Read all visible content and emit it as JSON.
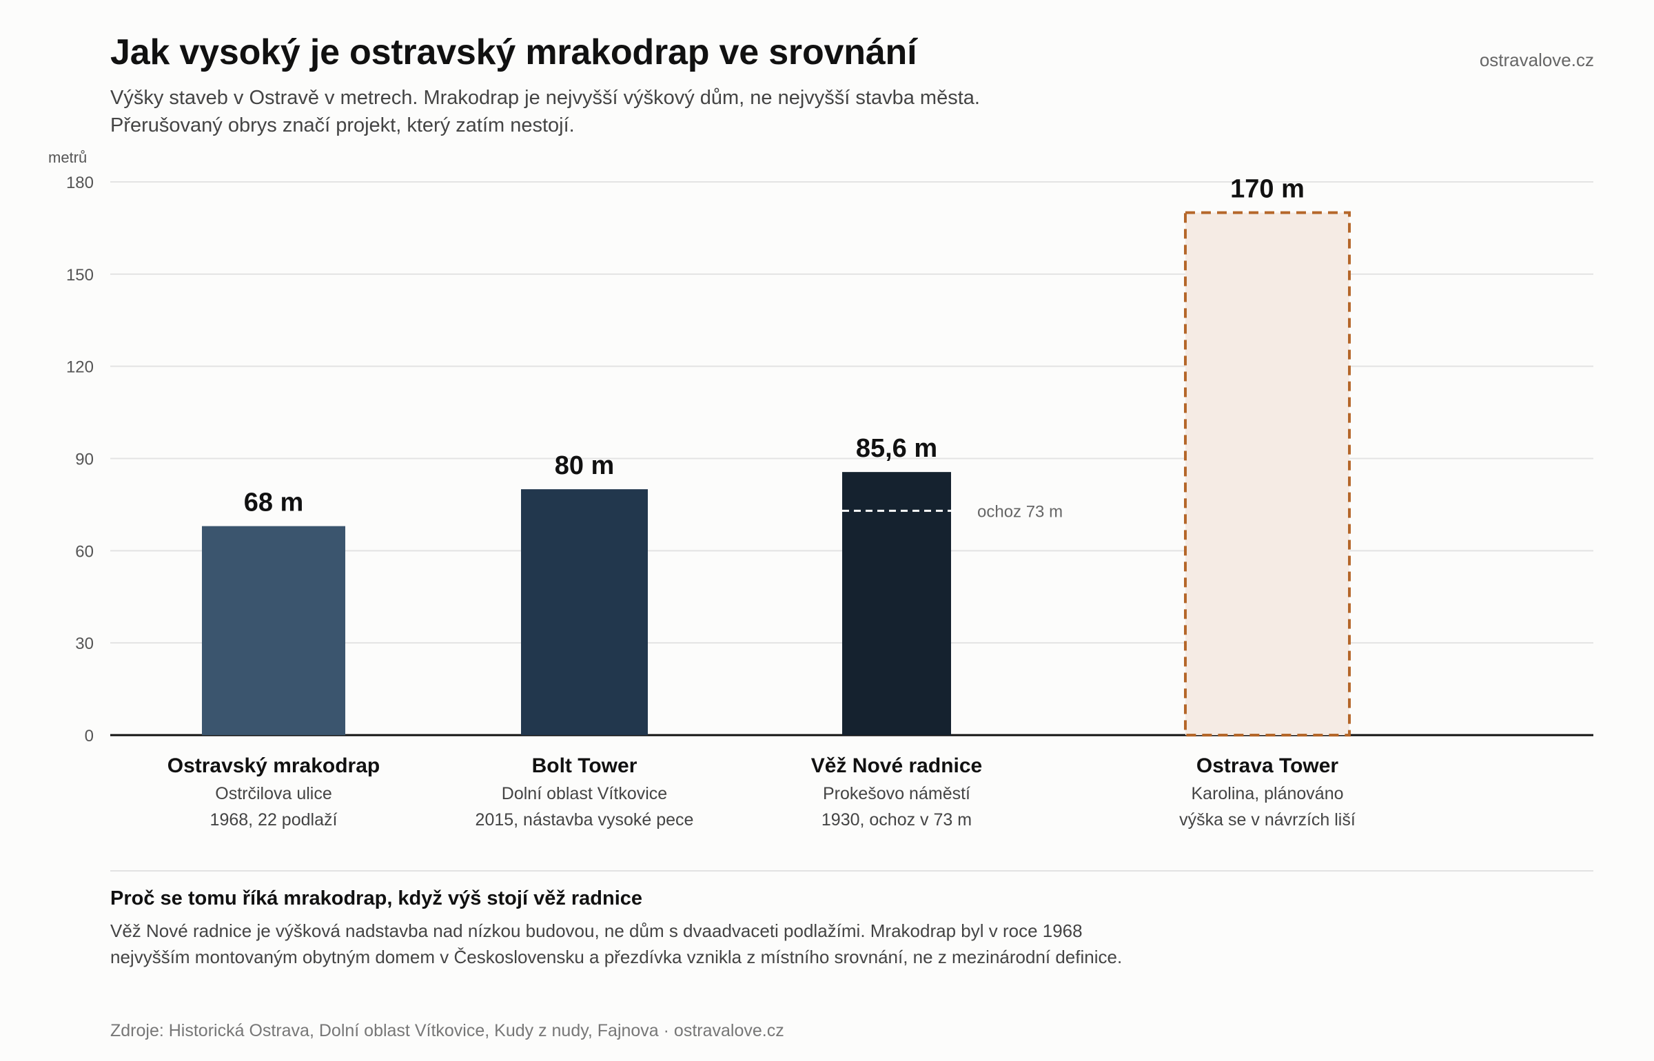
{
  "header": {
    "title": "Jak vysoký je ostravský mrakodrap ve srovnání",
    "brand": "ostravalove.cz",
    "subtitle_lines": [
      "Výšky staveb v Ostravě v metrech. Mrakodrap je nejvyšší výškový dům, ne nejvyšší stavba města.",
      "Přerušovaný obrys značí projekt, který zatím nestojí."
    ]
  },
  "chart_data": {
    "type": "bar",
    "ylabel": "metrů",
    "ylim": [
      0,
      180
    ],
    "yticks": [
      0,
      30,
      60,
      90,
      120,
      150,
      180
    ],
    "grid": true,
    "bars": [
      {
        "name": "Ostravský mrakodrap",
        "value": 68,
        "value_label": "68 m",
        "lines": [
          "Ostrčilova ulice",
          "1968, 22 podlaží"
        ],
        "color": "#3b556e",
        "planned": false
      },
      {
        "name": "Bolt Tower",
        "value": 80,
        "value_label": "80 m",
        "lines": [
          "Dolní oblast Vítkovice",
          "2015, nástavba vysoké pece"
        ],
        "color": "#22374d",
        "planned": false
      },
      {
        "name": "Věž Nové radnice",
        "value": 85.6,
        "value_label": "85,6 m",
        "lines": [
          "Prokešovo náměstí",
          "1930, ochoz v 73 m"
        ],
        "color": "#15222f",
        "planned": false,
        "marker": {
          "value": 73,
          "label": "ochoz 73 m"
        }
      },
      {
        "name": "Ostrava Tower",
        "value": 170,
        "value_label": "170 m",
        "lines": [
          "Karolina, plánováno",
          "výška se v návrzích liší"
        ],
        "color": "#f5ebe4",
        "outline_color": "#b5672a",
        "planned": true
      }
    ]
  },
  "note": {
    "title": "Proč se tomu říká mrakodrap, když výš stojí věž radnice",
    "body_lines": [
      "Věž Nové radnice je výšková nadstavba nad nízkou budovou, ne dům s dvaadvaceti podlažími. Mrakodrap byl v roce 1968",
      "nejvyšším montovaným obytným domem v Československu a přezdívka vznikla z místního srovnání, ne z mezinárodní definice."
    ]
  },
  "footer": {
    "source": "Zdroje: Historická Ostrava, Dolní oblast Vítkovice, Kudy z nudy, Fajnova · ostravalove.cz"
  }
}
